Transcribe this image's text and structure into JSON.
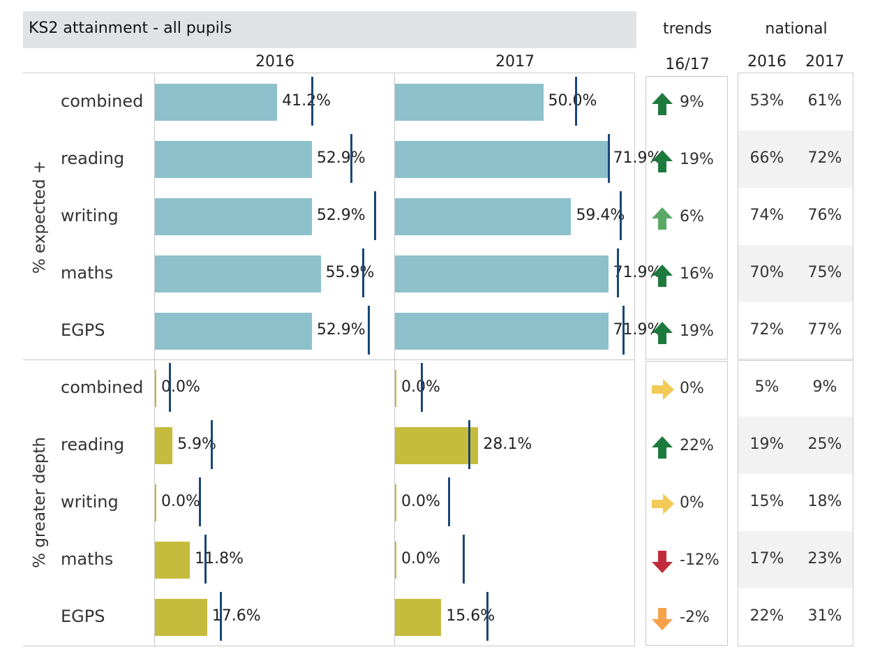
{
  "title": "KS2 attainment - all pupils",
  "headers": {
    "year_2016": "2016",
    "year_2017": "2017",
    "trends": "trends",
    "trends_period": "16/17",
    "national": "national",
    "national_2016": "2016",
    "national_2017": "2017"
  },
  "colors": {
    "expected_bar": "#8cc1cb",
    "greater_depth_bar": "#c5bc3d",
    "reference_line": "#1a4678",
    "arrow_up_dark": "#1d7a3e",
    "arrow_up_light": "#5ba866",
    "arrow_right": "#f2ca55",
    "arrow_down_red": "#c22b3b",
    "arrow_down_orange": "#f5a14a"
  },
  "chart_data": {
    "type": "bar",
    "xlim": [
      0,
      100
    ],
    "groups": [
      {
        "label": "% expected +",
        "rows": [
          {
            "subject": "combined",
            "v2016": 41.2,
            "label2016": "41.2%",
            "ref2016": 53,
            "v2017": 50.0,
            "label2017": "50.0%",
            "ref2017": 61,
            "trend": "9%",
            "trend_icon": "arrow-up-dark",
            "nat2016": "53%",
            "nat2017": "61%"
          },
          {
            "subject": "reading",
            "v2016": 52.9,
            "label2016": "52.9%",
            "ref2016": 66,
            "v2017": 71.9,
            "label2017": "71.9%",
            "ref2017": 72,
            "trend": "19%",
            "trend_icon": "arrow-up-dark",
            "nat2016": "66%",
            "nat2017": "72%"
          },
          {
            "subject": "writing",
            "v2016": 52.9,
            "label2016": "52.9%",
            "ref2016": 74,
            "v2017": 59.4,
            "label2017": "59.4%",
            "ref2017": 76,
            "trend": "6%",
            "trend_icon": "arrow-up-light",
            "nat2016": "74%",
            "nat2017": "76%"
          },
          {
            "subject": "maths",
            "v2016": 55.9,
            "label2016": "55.9%",
            "ref2016": 70,
            "v2017": 71.9,
            "label2017": "71.9%",
            "ref2017": 75,
            "trend": "16%",
            "trend_icon": "arrow-up-dark",
            "nat2016": "70%",
            "nat2017": "75%"
          },
          {
            "subject": "EGPS",
            "v2016": 52.9,
            "label2016": "52.9%",
            "ref2016": 72,
            "v2017": 71.9,
            "label2017": "71.9%",
            "ref2017": 77,
            "trend": "19%",
            "trend_icon": "arrow-up-dark",
            "nat2016": "72%",
            "nat2017": "77%"
          }
        ]
      },
      {
        "label": "% greater depth",
        "rows": [
          {
            "subject": "combined",
            "v2016": 0.0,
            "label2016": "0.0%",
            "ref2016": 5,
            "v2017": 0.0,
            "label2017": "0.0%",
            "ref2017": 9,
            "trend": "0%",
            "trend_icon": "arrow-right",
            "nat2016": "5%",
            "nat2017": "9%"
          },
          {
            "subject": "reading",
            "v2016": 5.9,
            "label2016": "5.9%",
            "ref2016": 19,
            "v2017": 28.1,
            "label2017": "28.1%",
            "ref2017": 25,
            "trend": "22%",
            "trend_icon": "arrow-up-dark",
            "nat2016": "19%",
            "nat2017": "25%"
          },
          {
            "subject": "writing",
            "v2016": 0.0,
            "label2016": "0.0%",
            "ref2016": 15,
            "v2017": 0.0,
            "label2017": "0.0%",
            "ref2017": 18,
            "trend": "0%",
            "trend_icon": "arrow-right",
            "nat2016": "15%",
            "nat2017": "18%"
          },
          {
            "subject": "maths",
            "v2016": 11.8,
            "label2016": "11.8%",
            "ref2016": 17,
            "v2017": 0.0,
            "label2017": "0.0%",
            "ref2017": 23,
            "trend": "-12%",
            "trend_icon": "arrow-down-red",
            "nat2016": "17%",
            "nat2017": "23%"
          },
          {
            "subject": "EGPS",
            "v2016": 17.6,
            "label2016": "17.6%",
            "ref2016": 22,
            "v2017": 15.6,
            "label2017": "15.6%",
            "ref2017": 31,
            "trend": "-2%",
            "trend_icon": "arrow-down-orange",
            "nat2016": "22%",
            "nat2017": "31%"
          }
        ]
      }
    ]
  }
}
